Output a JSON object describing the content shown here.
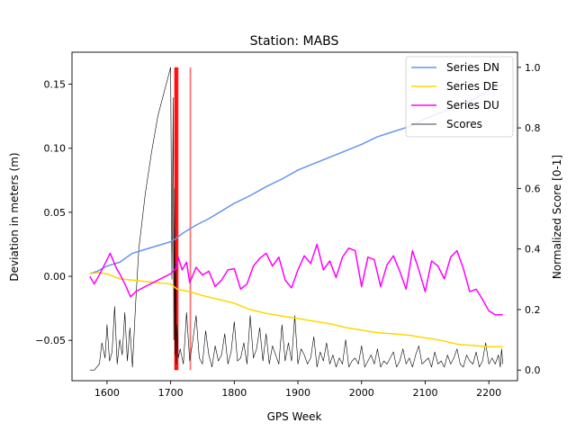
{
  "chart_data": {
    "type": "line",
    "title": "Station: MABS",
    "xlabel": "GPS Week",
    "ylabel_left": "Deviation in meters (m)",
    "ylabel_right": "Normalized Score [0-1]",
    "xlim": [
      1545,
      2245
    ],
    "ylim_left": [
      -0.0815,
      0.175
    ],
    "ylim_right": [
      -0.035,
      1.05
    ],
    "x_ticks": [
      1600,
      1700,
      1800,
      1900,
      2000,
      2100,
      2200
    ],
    "y_ticks_left": [
      -0.05,
      0.0,
      0.05,
      0.1,
      0.15
    ],
    "y_ticks_left_labels": [
      "−0.05",
      "0.00",
      "0.05",
      "0.10",
      "0.15"
    ],
    "y_ticks_right": [
      0.0,
      0.2,
      0.4,
      0.6,
      0.8,
      1.0
    ],
    "y_ticks_right_labels": [
      "0.0",
      "0.2",
      "0.4",
      "0.6",
      "0.8",
      "1.0"
    ],
    "grid": false,
    "legend_position": "top-right",
    "colors": {
      "series_dn": "#6495ED",
      "series_de": "#FFD700",
      "series_du": "#FF00FF",
      "scores": "#000000",
      "anomaly_lines": "#FF0000"
    },
    "series": [
      {
        "name": "Series DN",
        "axis": "left",
        "x": [
          1573,
          1585,
          1600,
          1620,
          1640,
          1660,
          1680,
          1700,
          1707,
          1720,
          1740,
          1760,
          1780,
          1800,
          1825,
          1850,
          1875,
          1900,
          1925,
          1950,
          1975,
          2000,
          2025,
          2050,
          2075,
          2100,
          2125,
          2150,
          2175,
          2200,
          2222
        ],
        "y": [
          0.002,
          0.004,
          0.008,
          0.011,
          0.018,
          0.021,
          0.024,
          0.027,
          0.029,
          0.034,
          0.04,
          0.045,
          0.051,
          0.057,
          0.063,
          0.07,
          0.076,
          0.083,
          0.088,
          0.093,
          0.098,
          0.103,
          0.109,
          0.113,
          0.117,
          0.123,
          0.128,
          0.133,
          0.138,
          0.145,
          0.15
        ]
      },
      {
        "name": "Series DE",
        "axis": "left",
        "x": [
          1573,
          1590,
          1605,
          1620,
          1640,
          1660,
          1680,
          1700,
          1710,
          1730,
          1750,
          1775,
          1800,
          1825,
          1850,
          1875,
          1900,
          1925,
          1950,
          1975,
          2000,
          2025,
          2050,
          2075,
          2100,
          2125,
          2150,
          2175,
          2200,
          2222
        ],
        "y": [
          0.002,
          0.003,
          0.001,
          -0.002,
          -0.003,
          -0.004,
          -0.005,
          -0.006,
          -0.01,
          -0.012,
          -0.015,
          -0.018,
          -0.021,
          -0.026,
          -0.029,
          -0.031,
          -0.033,
          -0.035,
          -0.037,
          -0.04,
          -0.042,
          -0.044,
          -0.045,
          -0.046,
          -0.048,
          -0.05,
          -0.053,
          -0.054,
          -0.055,
          -0.055
        ]
      },
      {
        "name": "Series DU",
        "axis": "left",
        "x": [
          1573,
          1580,
          1590,
          1600,
          1605,
          1610,
          1615,
          1620,
          1630,
          1637,
          1645,
          1660,
          1680,
          1700,
          1708,
          1712,
          1718,
          1725,
          1730,
          1740,
          1750,
          1760,
          1770,
          1780,
          1790,
          1800,
          1810,
          1820,
          1830,
          1840,
          1850,
          1860,
          1870,
          1880,
          1890,
          1900,
          1910,
          1920,
          1930,
          1940,
          1950,
          1960,
          1970,
          1980,
          1990,
          2000,
          2010,
          2020,
          2030,
          2040,
          2050,
          2060,
          2070,
          2080,
          2090,
          2100,
          2110,
          2120,
          2130,
          2140,
          2150,
          2160,
          2170,
          2180,
          2190,
          2200,
          2210,
          2222
        ],
        "y": [
          0.0,
          -0.006,
          0.003,
          0.013,
          0.018,
          0.012,
          0.006,
          0.002,
          -0.008,
          -0.016,
          -0.012,
          -0.008,
          -0.003,
          0.002,
          0.006,
          0.015,
          0.005,
          0.011,
          -0.005,
          0.007,
          0.001,
          0.004,
          -0.008,
          -0.003,
          0.005,
          0.006,
          -0.01,
          -0.006,
          0.008,
          0.014,
          0.018,
          0.008,
          0.015,
          -0.003,
          -0.009,
          0.005,
          0.016,
          0.01,
          0.025,
          0.005,
          0.012,
          -0.001,
          0.015,
          0.022,
          0.02,
          -0.008,
          0.015,
          0.013,
          -0.008,
          0.009,
          0.016,
          0.004,
          -0.01,
          0.02,
          0.005,
          -0.012,
          0.012,
          0.008,
          -0.002,
          0.015,
          0.02,
          0.006,
          -0.012,
          -0.01,
          -0.018,
          -0.027,
          -0.03,
          -0.03
        ]
      },
      {
        "name": "Scores",
        "axis": "right",
        "x": [
          1573,
          1580,
          1588,
          1592,
          1597,
          1600,
          1604,
          1608,
          1612,
          1616,
          1620,
          1624,
          1628,
          1632,
          1636,
          1640,
          1645,
          1650,
          1660,
          1670,
          1680,
          1690,
          1700,
          1702,
          1704,
          1705,
          1706,
          1707,
          1708,
          1709,
          1710,
          1712,
          1715,
          1720,
          1725,
          1730,
          1735,
          1740,
          1745,
          1750,
          1755,
          1760,
          1765,
          1770,
          1775,
          1780,
          1785,
          1790,
          1795,
          1800,
          1805,
          1810,
          1815,
          1820,
          1825,
          1830,
          1835,
          1840,
          1845,
          1850,
          1855,
          1860,
          1865,
          1870,
          1875,
          1880,
          1885,
          1890,
          1895,
          1900,
          1905,
          1910,
          1915,
          1920,
          1925,
          1930,
          1935,
          1940,
          1945,
          1950,
          1955,
          1960,
          1965,
          1970,
          1975,
          1980,
          1985,
          1990,
          1995,
          2000,
          2005,
          2010,
          2015,
          2020,
          2025,
          2030,
          2035,
          2040,
          2045,
          2050,
          2055,
          2060,
          2065,
          2070,
          2075,
          2080,
          2085,
          2090,
          2095,
          2100,
          2105,
          2110,
          2115,
          2120,
          2125,
          2130,
          2135,
          2140,
          2145,
          2150,
          2155,
          2160,
          2165,
          2170,
          2175,
          2180,
          2185,
          2190,
          2195,
          2200,
          2205,
          2210,
          2215,
          2218,
          2220,
          2222
        ],
        "y": [
          0.0,
          0.0,
          0.02,
          0.09,
          0.04,
          0.15,
          0.03,
          0.06,
          0.21,
          0.02,
          0.1,
          0.05,
          0.19,
          0.03,
          0.14,
          0.01,
          0.22,
          0.4,
          0.58,
          0.72,
          0.84,
          0.92,
          1.0,
          0.3,
          0.9,
          0.1,
          0.6,
          0.05,
          0.35,
          0.02,
          0.15,
          0.04,
          0.07,
          0.02,
          0.19,
          0.03,
          0.1,
          0.18,
          0.04,
          0.02,
          0.13,
          0.05,
          0.01,
          0.08,
          0.03,
          0.05,
          0.12,
          0.02,
          0.06,
          0.16,
          0.03,
          0.04,
          0.09,
          0.02,
          0.18,
          0.04,
          0.07,
          0.14,
          0.03,
          0.12,
          0.02,
          0.08,
          0.05,
          0.02,
          0.15,
          0.03,
          0.09,
          0.03,
          0.18,
          0.02,
          0.07,
          0.05,
          0.02,
          0.04,
          0.11,
          0.01,
          0.06,
          0.03,
          0.09,
          0.02,
          0.05,
          0.01,
          0.04,
          0.02,
          0.1,
          0.01,
          0.03,
          0.04,
          0.02,
          0.08,
          0.01,
          0.03,
          0.05,
          0.02,
          0.07,
          0.01,
          0.03,
          0.02,
          0.04,
          0.06,
          0.01,
          0.03,
          0.07,
          0.02,
          0.04,
          0.01,
          0.05,
          0.08,
          0.02,
          0.03,
          0.04,
          0.01,
          0.06,
          0.02,
          0.03,
          0.01,
          0.05,
          0.02,
          0.04,
          0.07,
          0.02,
          0.01,
          0.05,
          0.03,
          0.02,
          0.06,
          0.01,
          0.03,
          0.09,
          0.02,
          0.04,
          0.02,
          0.05,
          0.01,
          0.07,
          0.02
        ]
      }
    ],
    "anomaly_lines": {
      "axis": "right",
      "x": [
        1707,
        1709,
        1711,
        1731
      ],
      "y_range": [
        0.0,
        1.0
      ],
      "opacity": [
        0.95,
        0.9,
        0.85,
        0.55
      ]
    }
  }
}
